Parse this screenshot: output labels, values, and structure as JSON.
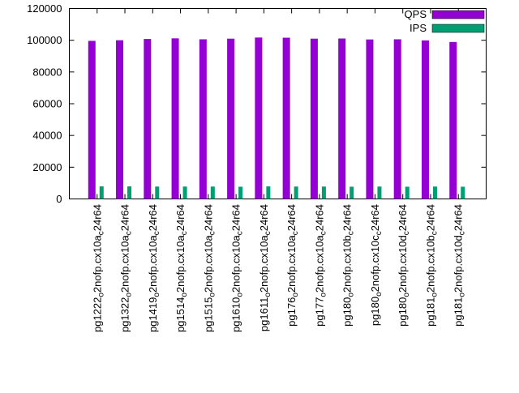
{
  "chart_data": {
    "type": "bar",
    "title": "",
    "xlabel": "",
    "ylabel": "",
    "ylim": [
      0,
      120000
    ],
    "ytick_step": 20000,
    "ytick_labels": [
      "0",
      "20000",
      "40000",
      "60000",
      "80000",
      "100000",
      "120000"
    ],
    "grid": false,
    "legend_position": "top-right",
    "categories": [
      "pg1222_o2nofp.cx10a_c24r64",
      "pg1322_o2nofp.cx10a_c24r64",
      "pg1419_o2nofp.cx10a_c24r64",
      "pg1514_o2nofp.cx10a_c24r64",
      "pg1515_o2nofp.cx10a_c24r64",
      "pg1610_o2nofp.cx10a_c24r64",
      "pg1611_o2nofp.cx10a_c24r64",
      "pg176_o2nofp.cx10a_c24r64",
      "pg177_o2nofp.cx10a_c24r64",
      "pg180_o2nofp.cx10b_c24r64",
      "pg180_o2nofp.cx10c_c24r64",
      "pg180_o2nofp.cx10d_c24r64",
      "pg181_o2nofp.cx10b_c24r64",
      "pg181_o2nofp.cx10d_c24r64"
    ],
    "series": [
      {
        "name": "QPS",
        "color": "#9400d3",
        "values": [
          99600,
          100000,
          100800,
          101200,
          100600,
          101000,
          101700,
          101600,
          101000,
          101100,
          100500,
          100600,
          99900,
          98900
        ]
      },
      {
        "name": "IPS",
        "color": "#009e73",
        "values": [
          7900,
          7900,
          7800,
          7800,
          7800,
          7700,
          7900,
          7800,
          7800,
          7700,
          7800,
          7700,
          7800,
          7700
        ]
      }
    ]
  }
}
